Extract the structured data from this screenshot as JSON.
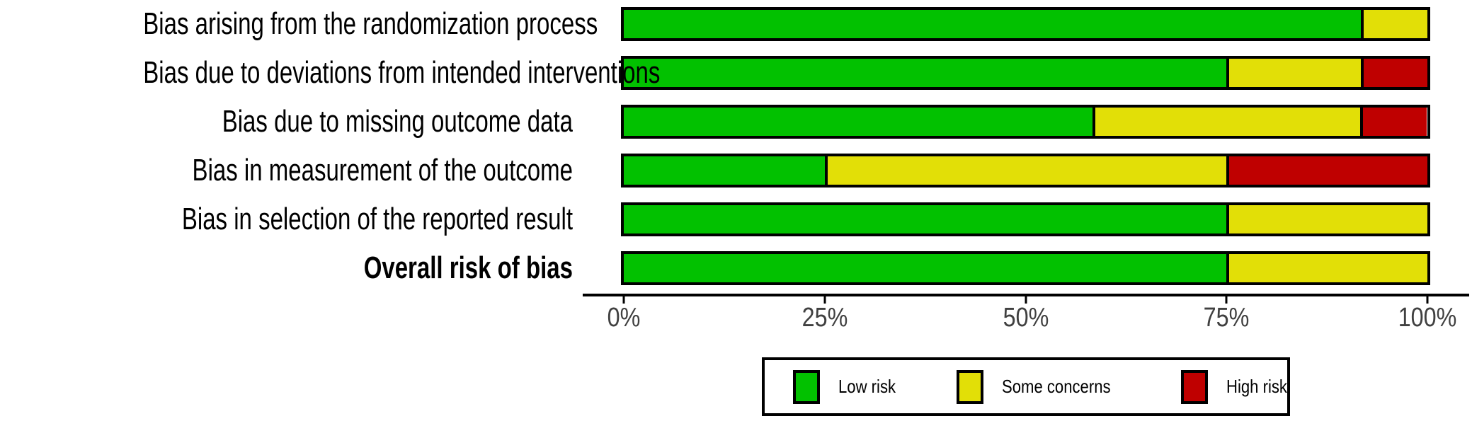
{
  "chart_data": {
    "type": "bar",
    "orientation": "horizontal",
    "stacked": true,
    "units": "percent_of_studies",
    "title": "",
    "xlabel": "",
    "ylabel": "",
    "grid": false,
    "background": "#FFFFFF",
    "bar_border_color": "#000000",
    "categories": [
      {
        "label": "Bias arising from the randomization process",
        "bold": false
      },
      {
        "label": "Bias due to deviations from intended interventions",
        "bold": false
      },
      {
        "label": "Bias due to missing outcome data",
        "bold": false
      },
      {
        "label": "Bias in measurement of the outcome",
        "bold": false
      },
      {
        "label": "Bias in selection of the reported result",
        "bold": false
      },
      {
        "label": "Overall risk of bias",
        "bold": true
      }
    ],
    "series": [
      {
        "name": "Low risk",
        "slug": "low-risk",
        "color": "#02C100",
        "values": [
          91.7,
          75.0,
          58.3,
          25.0,
          75.0,
          75.0
        ]
      },
      {
        "name": "Some concerns",
        "slug": "some-concerns",
        "color": "#E2DF07",
        "values": [
          8.3,
          16.7,
          33.3,
          50.0,
          25.0,
          25.0
        ]
      },
      {
        "name": "High risk",
        "slug": "high-risk",
        "color": "#BF0000",
        "values": [
          0,
          8.3,
          8.3,
          25.0,
          0,
          0
        ]
      }
    ],
    "x_axis": {
      "range": [
        0,
        100
      ],
      "ticks": [
        {
          "label": "0%",
          "value": 0
        },
        {
          "label": "25%",
          "value": 25
        },
        {
          "label": "50%",
          "value": 50
        },
        {
          "label": "75%",
          "value": 75
        },
        {
          "label": "100%",
          "value": 100
        }
      ]
    },
    "legend": {
      "position": "bottom",
      "entries": [
        "Low risk",
        "Some concerns",
        "High risk"
      ]
    }
  }
}
